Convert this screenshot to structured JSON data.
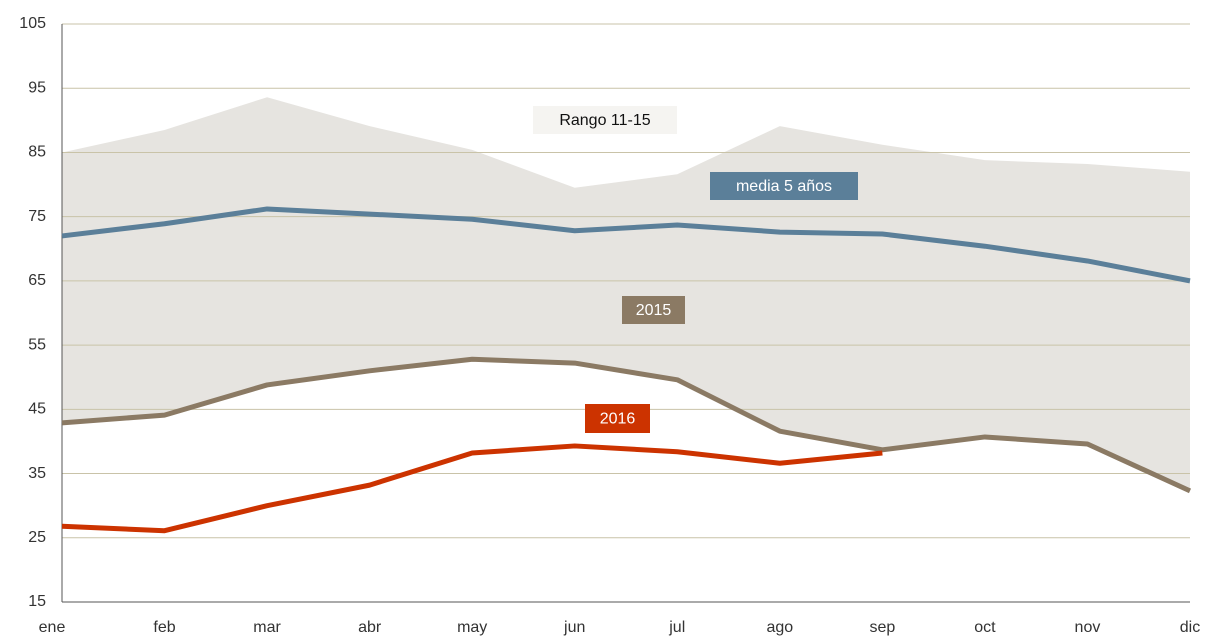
{
  "chart_data": {
    "type": "line",
    "categories": [
      "ene",
      "feb",
      "mar",
      "abr",
      "may",
      "jun",
      "jul",
      "ago",
      "sep",
      "oct",
      "nov",
      "dic"
    ],
    "range": {
      "name": "Rango 11-15",
      "color": "#e6e4e0",
      "upper": [
        85,
        88.5,
        93.6,
        89.1,
        85.4,
        79.5,
        81.6,
        89.1,
        86.2,
        83.8,
        83.2,
        82
      ],
      "lower": [
        42.9,
        44.1,
        48.8,
        51,
        52.8,
        52.2,
        49.6,
        41.6,
        38.7,
        40.7,
        39.6,
        32.3
      ]
    },
    "series": [
      {
        "name": "media 5 años",
        "color": "#5b7f99",
        "values": [
          72,
          73.9,
          76.2,
          75.4,
          74.6,
          72.8,
          73.7,
          72.6,
          72.3,
          70.4,
          68.1,
          65
        ]
      },
      {
        "name": "2015",
        "color": "#8b7a64",
        "values": [
          42.9,
          44.1,
          48.8,
          51,
          52.8,
          52.2,
          49.6,
          41.6,
          38.7,
          40.7,
          39.6,
          32.3
        ]
      },
      {
        "name": "2016",
        "color": "#cc3300",
        "values": [
          26.8,
          26.1,
          30,
          33.2,
          38.2,
          39.3,
          38.4,
          36.6,
          38.2,
          null,
          null,
          null
        ]
      }
    ],
    "ylim": [
      15,
      105
    ],
    "yticks": [
      15,
      25,
      35,
      45,
      55,
      65,
      75,
      85,
      95,
      105
    ],
    "grid": true
  }
}
